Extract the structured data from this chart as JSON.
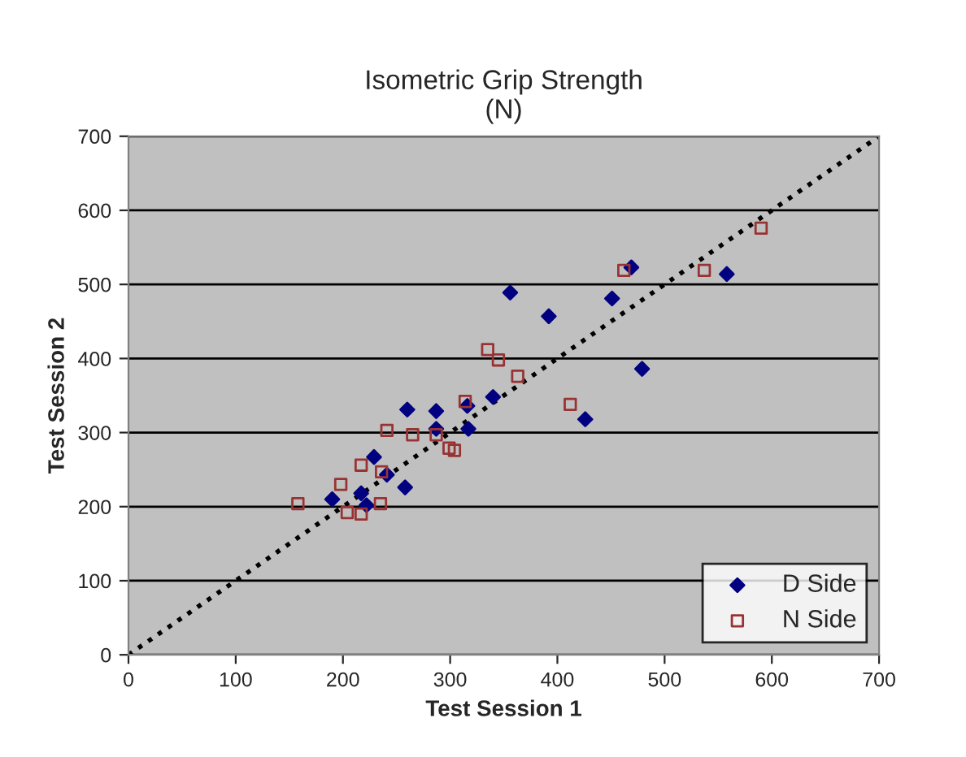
{
  "chart_data": {
    "type": "scatter",
    "title": "Isometric Grip Strength\n(N)",
    "xlabel": "Test Session 1",
    "ylabel": "Test Session 2",
    "xlim": [
      0,
      700
    ],
    "ylim": [
      0,
      700
    ],
    "xticks": [
      0,
      100,
      200,
      300,
      400,
      500,
      600,
      700
    ],
    "yticks": [
      0,
      100,
      200,
      300,
      400,
      500,
      600,
      700
    ],
    "grid": "y",
    "legend": "bottom right",
    "series": [
      {
        "name": "D Side",
        "color": "#000080",
        "marker": "diamond",
        "x": [
          260,
          287,
          287,
          317,
          316,
          340,
          229,
          241,
          258,
          217,
          190,
          222,
          469,
          356,
          392,
          451,
          558,
          479,
          426
        ],
        "values": [
          331,
          329,
          305,
          305,
          336,
          348,
          267,
          243,
          226,
          218,
          210,
          202,
          523,
          489,
          457,
          481,
          514,
          386,
          318
        ]
      },
      {
        "name": "N Side",
        "color": "#993333",
        "marker": "square",
        "x": [
          314,
          241,
          265,
          287,
          299,
          304,
          217,
          236,
          198,
          158,
          235,
          204,
          217,
          462,
          537,
          590,
          335,
          345,
          363,
          412
        ],
        "values": [
          342,
          303,
          297,
          297,
          279,
          276,
          256,
          247,
          230,
          204,
          204,
          192,
          190,
          519,
          519,
          576,
          412,
          398,
          376,
          338
        ]
      },
      {
        "type": "line",
        "color": "#000000",
        "line_style": "dotted",
        "marker": "none",
        "x": [
          0,
          700
        ],
        "values": [
          0,
          700
        ]
      }
    ]
  }
}
